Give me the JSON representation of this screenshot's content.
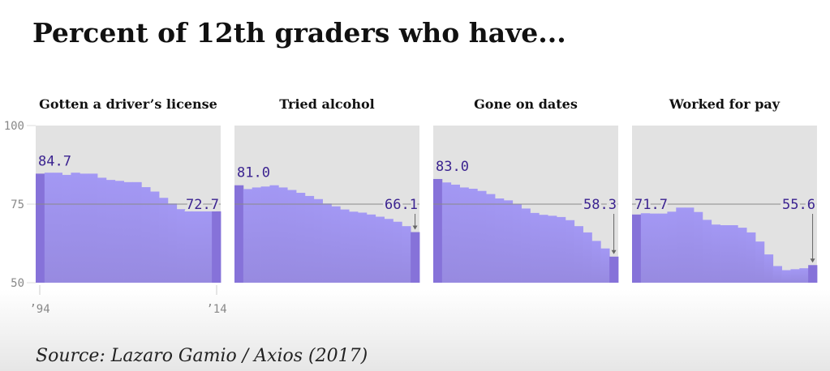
{
  "title": "Percent of 12th graders who have...",
  "source": "Source: Lazaro Gamio / Axios (2017)",
  "colors": {
    "panel_bg": "#e2e2e2",
    "fill": "#a398f4",
    "highlight": "#8672d9",
    "label": "#3b2390"
  },
  "chart_data": {
    "type": "bar",
    "ylim": [
      50,
      100
    ],
    "yticks": [
      "100",
      "75",
      "50"
    ],
    "reference_line": 75,
    "x": [
      1994,
      1995,
      1996,
      1997,
      1998,
      1999,
      2000,
      2001,
      2002,
      2003,
      2004,
      2005,
      2006,
      2007,
      2008,
      2009,
      2010,
      2011,
      2012,
      2013,
      2014
    ],
    "xtick_labels": [
      "’94",
      "’14"
    ],
    "panels": [
      {
        "title": "Gotten a driver’s license",
        "start_label": "84.7",
        "end_label": "72.7",
        "values": [
          84.7,
          85.0,
          85.0,
          84.3,
          85.0,
          84.7,
          84.7,
          83.4,
          82.7,
          82.4,
          82.0,
          82.0,
          80.4,
          79.0,
          77.0,
          75.2,
          73.4,
          72.7,
          72.7,
          73.0,
          72.7
        ]
      },
      {
        "title": "Tried alcohol",
        "start_label": "81.0",
        "end_label": "66.1",
        "values": [
          81.0,
          79.8,
          80.3,
          80.6,
          81.0,
          80.3,
          79.5,
          78.6,
          77.6,
          76.6,
          75.2,
          74.3,
          73.3,
          72.6,
          72.3,
          71.7,
          71.0,
          70.3,
          69.4,
          68.0,
          66.1
        ]
      },
      {
        "title": "Gone on dates",
        "start_label": "83.0",
        "end_label": "58.3",
        "values": [
          83.0,
          81.9,
          81.2,
          80.3,
          79.9,
          79.2,
          78.2,
          76.8,
          76.2,
          74.9,
          73.6,
          72.2,
          71.6,
          71.3,
          70.9,
          69.9,
          68.0,
          66.0,
          63.3,
          60.9,
          58.3
        ]
      },
      {
        "title": "Worked for pay",
        "start_label": "71.7",
        "end_label": "55.6",
        "values": [
          71.7,
          72.1,
          72.0,
          72.0,
          72.6,
          73.9,
          73.9,
          72.5,
          70.0,
          68.5,
          68.3,
          68.3,
          67.5,
          66.0,
          63.1,
          59.0,
          55.3,
          54.0,
          54.3,
          54.6,
          55.6
        ]
      }
    ]
  }
}
